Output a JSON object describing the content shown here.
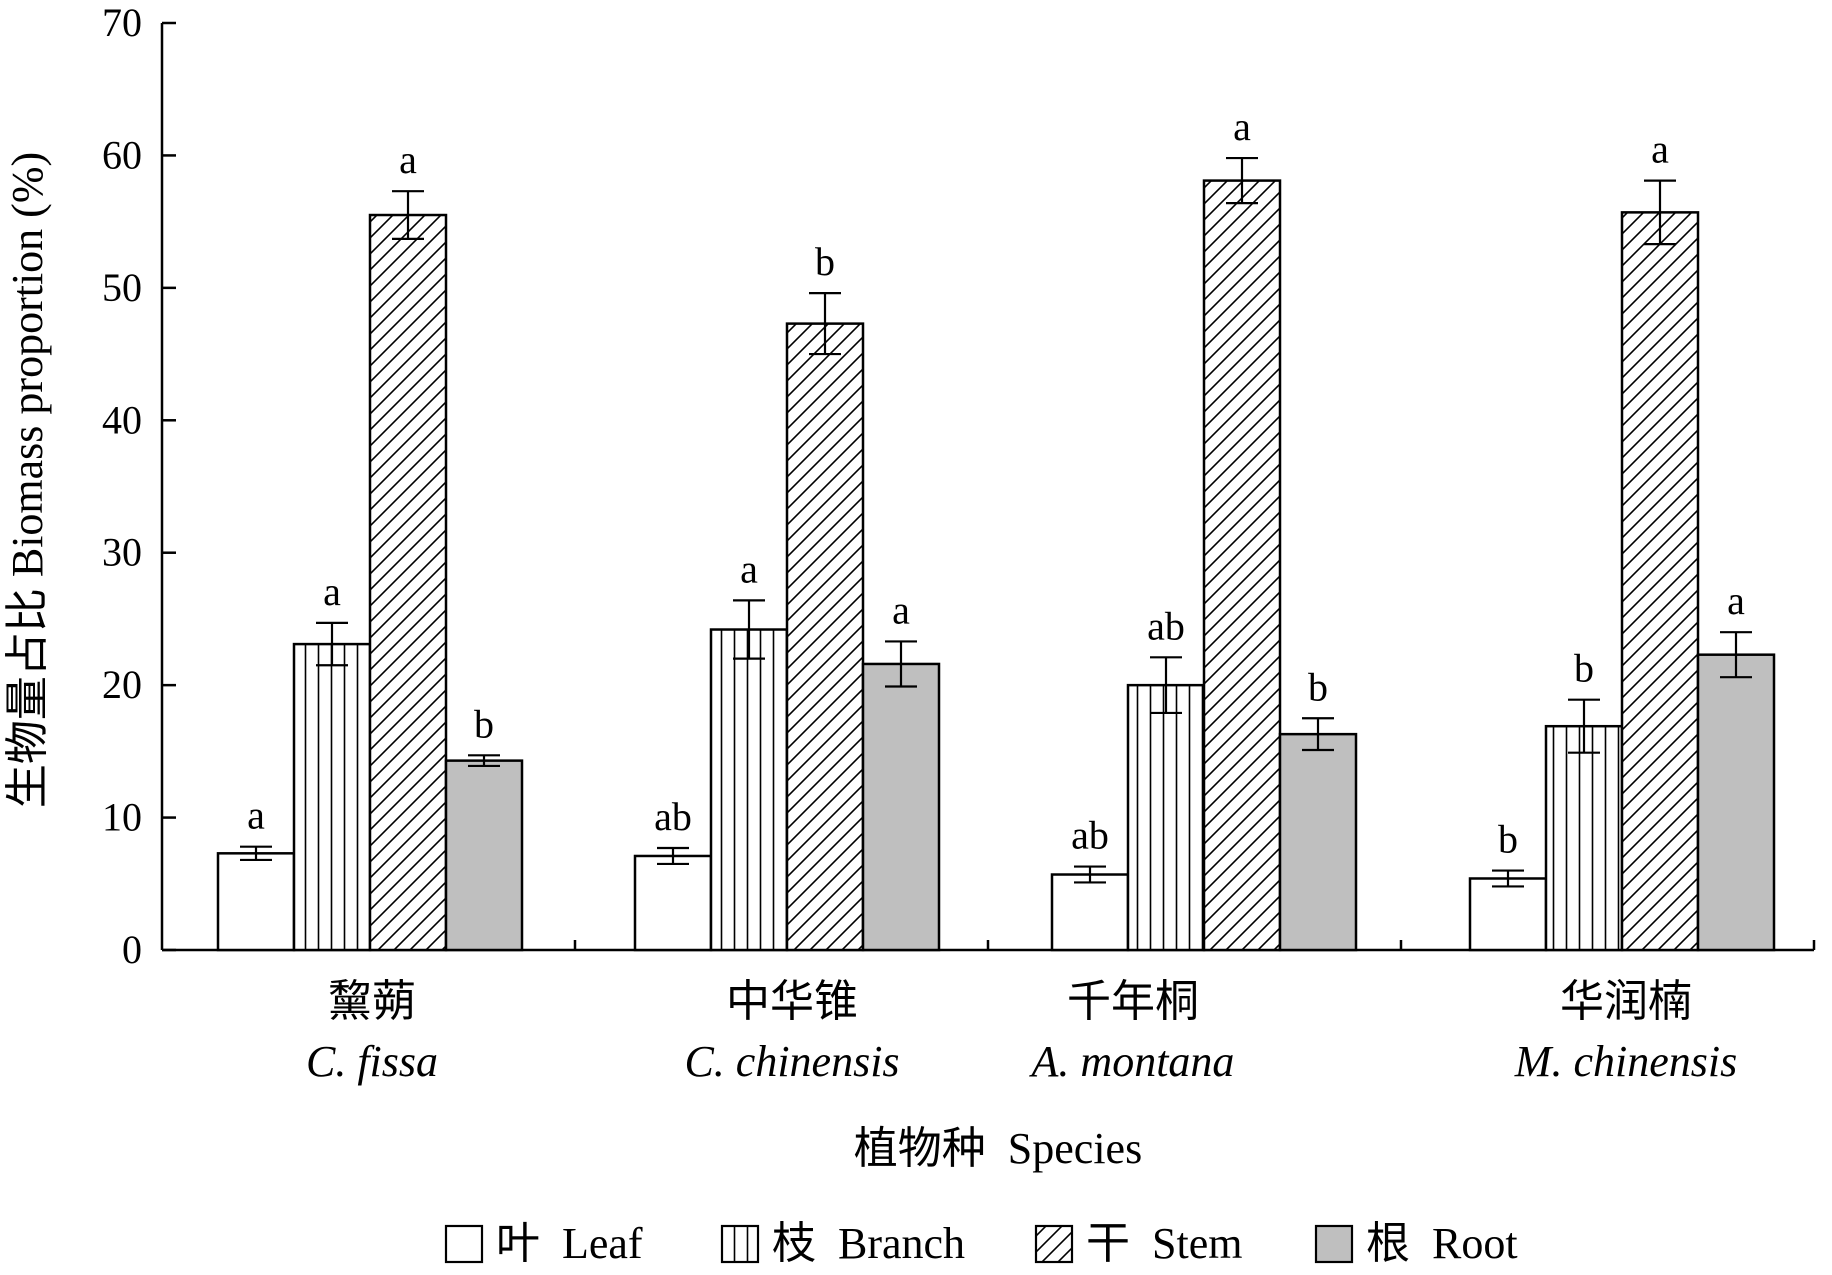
{
  "chart_data": {
    "type": "bar",
    "ylabel": "生物量占比 Biomass proportion (%)",
    "xlabel": "植物种  Species",
    "ylim": [
      0,
      70
    ],
    "yticks": [
      0,
      10,
      20,
      30,
      40,
      50,
      60,
      70
    ],
    "grid": false,
    "legend_position": "bottom",
    "categories": [
      {
        "cn": "黧蒴",
        "latin": "C. fissa"
      },
      {
        "cn": "中华锥",
        "latin": "C. chinensis"
      },
      {
        "cn": "千年桐",
        "latin": "A. montana"
      },
      {
        "cn": "华润楠",
        "latin": "M. chinensis"
      }
    ],
    "series": [
      {
        "name": "叶  Leaf",
        "pattern": "white",
        "values": [
          7.3,
          7.1,
          5.7,
          5.4
        ],
        "errors": [
          0.5,
          0.6,
          0.6,
          0.6
        ],
        "labels": [
          "a",
          "ab",
          "ab",
          "b"
        ]
      },
      {
        "name": "枝  Branch",
        "pattern": "vertical-lines",
        "values": [
          23.1,
          24.2,
          20.0,
          16.9
        ],
        "errors": [
          1.6,
          2.2,
          2.1,
          2.0
        ],
        "labels": [
          "a",
          "a",
          "ab",
          "b"
        ]
      },
      {
        "name": "干  Stem",
        "pattern": "diagonal-lines",
        "values": [
          55.5,
          47.3,
          58.1,
          55.7
        ],
        "errors": [
          1.8,
          2.3,
          1.7,
          2.4
        ],
        "labels": [
          "a",
          "b",
          "a",
          "a"
        ]
      },
      {
        "name": "根  Root",
        "pattern": "gray",
        "values": [
          14.3,
          21.6,
          16.3,
          22.3
        ],
        "errors": [
          0.4,
          1.7,
          1.2,
          1.7
        ],
        "labels": [
          "b",
          "a",
          "b",
          "a"
        ]
      }
    ],
    "colors": {
      "root_fill": "#bfbfbf",
      "stroke": "#000000",
      "background": "#ffffff"
    }
  }
}
